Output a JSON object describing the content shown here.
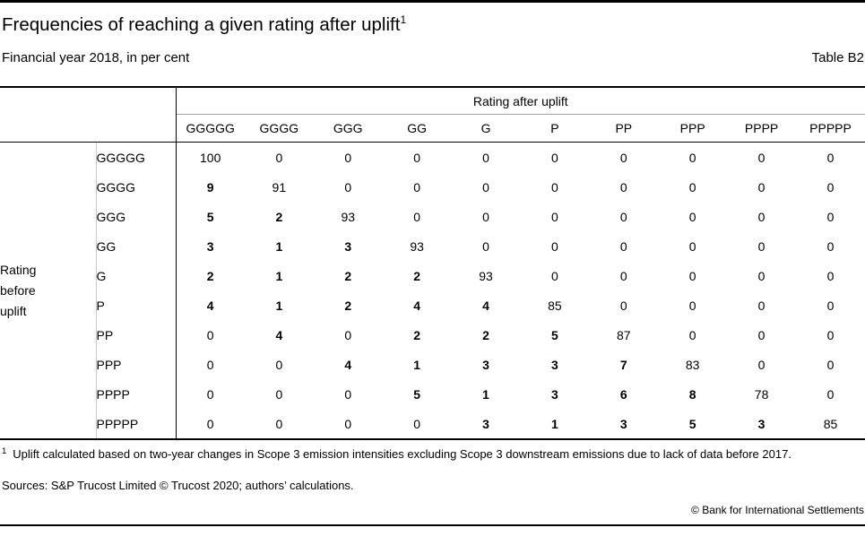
{
  "header": {
    "title": "Frequencies of reaching a given rating after uplift",
    "title_footnote_ref": "1",
    "subtitle": "Financial year 2018, in per cent",
    "table_label": "Table B2"
  },
  "table": {
    "column_group_header": "Rating after uplift",
    "row_group_header": "Rating before uplift",
    "columns": [
      "GGGGG",
      "GGGG",
      "GGG",
      "GG",
      "G",
      "P",
      "PP",
      "PPP",
      "PPPP",
      "PPPPP"
    ],
    "rows": [
      {
        "label": "GGGGG",
        "values": [
          "100",
          "0",
          "0",
          "0",
          "0",
          "0",
          "0",
          "0",
          "0",
          "0"
        ],
        "bold": [
          0,
          0,
          0,
          0,
          0,
          0,
          0,
          0,
          0,
          0
        ]
      },
      {
        "label": "GGGG",
        "values": [
          "9",
          "91",
          "0",
          "0",
          "0",
          "0",
          "0",
          "0",
          "0",
          "0"
        ],
        "bold": [
          1,
          0,
          0,
          0,
          0,
          0,
          0,
          0,
          0,
          0
        ]
      },
      {
        "label": "GGG",
        "values": [
          "5",
          "2",
          "93",
          "0",
          "0",
          "0",
          "0",
          "0",
          "0",
          "0"
        ],
        "bold": [
          1,
          1,
          0,
          0,
          0,
          0,
          0,
          0,
          0,
          0
        ]
      },
      {
        "label": "GG",
        "values": [
          "3",
          "1",
          "3",
          "93",
          "0",
          "0",
          "0",
          "0",
          "0",
          "0"
        ],
        "bold": [
          1,
          1,
          1,
          0,
          0,
          0,
          0,
          0,
          0,
          0
        ]
      },
      {
        "label": "G",
        "values": [
          "2",
          "1",
          "2",
          "2",
          "93",
          "0",
          "0",
          "0",
          "0",
          "0"
        ],
        "bold": [
          1,
          1,
          1,
          1,
          0,
          0,
          0,
          0,
          0,
          0
        ]
      },
      {
        "label": "P",
        "values": [
          "4",
          "1",
          "2",
          "4",
          "4",
          "85",
          "0",
          "0",
          "0",
          "0"
        ],
        "bold": [
          1,
          1,
          1,
          1,
          1,
          0,
          0,
          0,
          0,
          0
        ]
      },
      {
        "label": "PP",
        "values": [
          "0",
          "4",
          "0",
          "2",
          "2",
          "5",
          "87",
          "0",
          "0",
          "0"
        ],
        "bold": [
          0,
          1,
          0,
          1,
          1,
          1,
          0,
          0,
          0,
          0
        ]
      },
      {
        "label": "PPP",
        "values": [
          "0",
          "0",
          "4",
          "1",
          "3",
          "3",
          "7",
          "83",
          "0",
          "0"
        ],
        "bold": [
          0,
          0,
          1,
          1,
          1,
          1,
          1,
          0,
          0,
          0
        ]
      },
      {
        "label": "PPPP",
        "values": [
          "0",
          "0",
          "0",
          "5",
          "1",
          "3",
          "6",
          "8",
          "78",
          "0"
        ],
        "bold": [
          0,
          0,
          0,
          1,
          1,
          1,
          1,
          1,
          0,
          0
        ]
      },
      {
        "label": "PPPPP",
        "values": [
          "0",
          "0",
          "0",
          "0",
          "3",
          "1",
          "3",
          "5",
          "3",
          "85"
        ],
        "bold": [
          0,
          0,
          0,
          0,
          1,
          1,
          1,
          1,
          1,
          0
        ]
      }
    ]
  },
  "footnotes": {
    "marker": "1",
    "text": "Uplift calculated based on two-year changes in Scope 3 emission intensities excluding Scope 3 downstream emissions due to lack of data before 2017.",
    "sources": "Sources: S&P Trucost Limited © Trucost 2020; authors’ calculations.",
    "copyright": "© Bank for International Settlements"
  }
}
